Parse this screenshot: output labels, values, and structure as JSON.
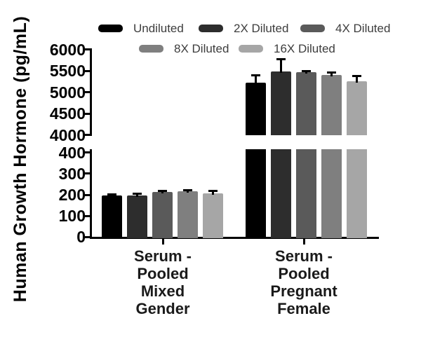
{
  "chart_data": {
    "type": "bar",
    "title": "",
    "ylabel": "Human Growth Hormone (pg/mL)",
    "legend_position": "top",
    "grid": false,
    "axis_break": true,
    "segments": [
      {
        "name": "lower",
        "range": [
          0,
          400
        ],
        "ticks": [
          0,
          100,
          200,
          300,
          400
        ]
      },
      {
        "name": "upper",
        "range": [
          4000,
          6000
        ],
        "ticks": [
          4000,
          4500,
          5000,
          5500,
          6000
        ]
      }
    ],
    "categories": [
      {
        "lines": [
          "Serum -",
          "Pooled",
          "Mixed",
          "Gender"
        ]
      },
      {
        "lines": [
          "Serum -",
          "Pooled",
          "Pregnant",
          "Female"
        ]
      }
    ],
    "series": [
      {
        "name": "Undiluted",
        "color": "#000000",
        "values": [
          198,
          5220
        ],
        "errors": [
          2,
          165
        ]
      },
      {
        "name": "2X Diluted",
        "color": "#2d2d2d",
        "values": [
          197,
          5490
        ],
        "errors": [
          5,
          270
        ]
      },
      {
        "name": "4X Diluted",
        "color": "#5a5a5a",
        "values": [
          214,
          5465
        ],
        "errors": [
          4,
          25
        ]
      },
      {
        "name": "8X Diluted",
        "color": "#7f7f7f",
        "values": [
          217,
          5410
        ],
        "errors": [
          4,
          45
        ]
      },
      {
        "name": "16X Diluted",
        "color": "#a6a6a6",
        "values": [
          207,
          5255
        ],
        "errors": [
          8,
          125
        ]
      }
    ]
  }
}
